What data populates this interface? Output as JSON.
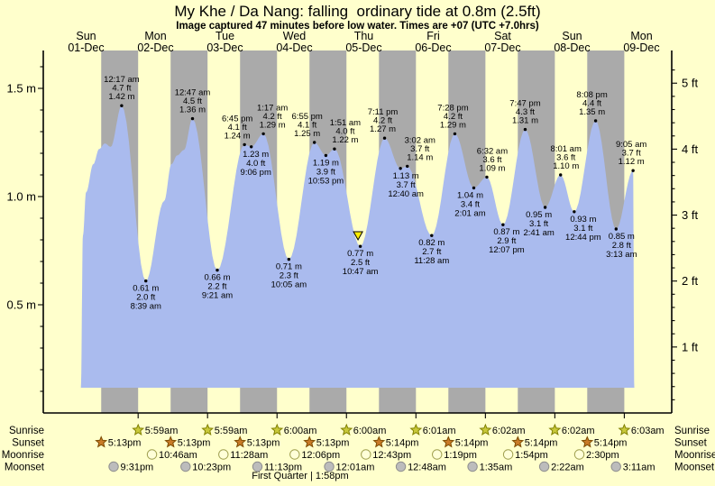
{
  "title": "My Khe / Da Nang: falling  ordinary tide at 0.8m (2.5ft)",
  "subtitle": "Image captured 47 minutes before low water. Times are +07 (UTC +7.0hrs)",
  "colors": {
    "background": "#FFFFCC",
    "night_band": "#AAAAAA",
    "tide_fill": "#AABBEE",
    "day_label_red": "#EE2222",
    "marker_yellow": "#FFEE00",
    "sunrise_star_fill": "#C9C93A",
    "sunrise_star_stroke": "#808000",
    "sunset_star_fill": "#C97B28",
    "sunset_star_stroke": "#7C4A00",
    "moonrise_circle_fill": "#FFFFD8",
    "moonrise_circle_stroke": "#A0A050",
    "moonset_circle_fill": "#BCBCBC",
    "moonset_circle_stroke": "#8F8F8F"
  },
  "chart_data": {
    "type": "area",
    "title": "My Khe / Da Nang: falling  ordinary tide at 0.8m (2.5ft)",
    "subtitle": "Image captured 47 minutes before low water. Times are +07 (UTC +7.0hrs)",
    "x_axis": {
      "days": [
        {
          "name": "Sun",
          "date": "01-Dec"
        },
        {
          "name": "Mon",
          "date": "02-Dec"
        },
        {
          "name": "Tue",
          "date": "03-Dec"
        },
        {
          "name": "Wed",
          "date": "04-Dec"
        },
        {
          "name": "Thu",
          "date": "05-Dec"
        },
        {
          "name": "Fri",
          "date": "06-Dec"
        },
        {
          "name": "Sat",
          "date": "07-Dec"
        },
        {
          "name": "Sun",
          "date": "08-Dec"
        },
        {
          "name": "Mon",
          "date": "09-Dec"
        }
      ]
    },
    "y_axis_left": {
      "unit": "m",
      "ticks": [
        0.5,
        1.0,
        1.5
      ],
      "tick_labels": [
        "0.5 m",
        "1.0 m",
        "1.5 m"
      ],
      "minor_step": 0.1,
      "range_m": [
        0,
        1.65
      ]
    },
    "y_axis_right": {
      "unit": "ft",
      "ticks": [
        1,
        2,
        3,
        4,
        5
      ],
      "tick_labels": [
        "1 ft",
        "2 ft",
        "3 ft",
        "4 ft",
        "5 ft"
      ],
      "minor_step": 0.2
    },
    "tide_extremes": [
      {
        "type": "high",
        "time": "12:17 am",
        "t_hours": 24.283,
        "height_m": 1.42,
        "height_ft": "4.7",
        "label_side": "above",
        "label_dx": 0
      },
      {
        "type": "low",
        "time": "8:39 am",
        "t_hours": 32.65,
        "height_m": 0.61,
        "height_ft": "2.0",
        "label_side": "below",
        "label_dx": 0
      },
      {
        "type": "high",
        "time": "12:47 am",
        "t_hours": 48.783,
        "height_m": 1.36,
        "height_ft": "4.5",
        "label_side": "above",
        "label_dx": 0
      },
      {
        "type": "low",
        "time": "9:21 am",
        "t_hours": 57.35,
        "height_m": 0.66,
        "height_ft": "2.2",
        "label_side": "below",
        "label_dx": 0
      },
      {
        "type": "high",
        "time": "6:45 pm",
        "t_hours": 66.75,
        "height_m": 1.24,
        "height_ft": "4.1",
        "label_side": "above",
        "label_dx": -8
      },
      {
        "type": "low",
        "time": "9:06 pm",
        "t_hours": 69.1,
        "height_m": 1.23,
        "height_ft": "4.0",
        "label_side": "below",
        "label_dx": 5
      },
      {
        "type": "high",
        "time": "1:17 am",
        "t_hours": 73.283,
        "height_m": 1.29,
        "height_ft": "4.2",
        "label_side": "above",
        "label_dx": 10
      },
      {
        "type": "low",
        "time": "10:05 am",
        "t_hours": 82.083,
        "height_m": 0.71,
        "height_ft": "2.3",
        "label_side": "below",
        "label_dx": 0
      },
      {
        "type": "high",
        "time": "6:55 pm",
        "t_hours": 90.917,
        "height_m": 1.25,
        "height_ft": "4.1",
        "label_side": "above",
        "label_dx": -8
      },
      {
        "type": "low",
        "time": "10:53 pm",
        "t_hours": 94.883,
        "height_m": 1.19,
        "height_ft": "3.9",
        "label_side": "below",
        "label_dx": 0
      },
      {
        "type": "high",
        "time": "1:51 am",
        "t_hours": 97.85,
        "height_m": 1.22,
        "height_ft": "4.0",
        "label_side": "above",
        "label_dx": 12
      },
      {
        "type": "low",
        "time": "10:47 am",
        "t_hours": 106.783,
        "height_m": 0.77,
        "height_ft": "2.5",
        "label_side": "below",
        "label_dx": 0
      },
      {
        "type": "high",
        "time": "7:11 pm",
        "t_hours": 115.183,
        "height_m": 1.27,
        "height_ft": "4.2",
        "label_side": "above",
        "label_dx": -2
      },
      {
        "type": "low",
        "time": "12:40 am",
        "t_hours": 120.667,
        "height_m": 1.13,
        "height_ft": "3.7",
        "label_side": "below",
        "label_dx": 6
      },
      {
        "type": "high",
        "time": "3:02 am",
        "t_hours": 123.033,
        "height_m": 1.14,
        "height_ft": "3.7",
        "label_side": "above",
        "label_dx": 14
      },
      {
        "type": "low",
        "time": "11:28 am",
        "t_hours": 131.467,
        "height_m": 0.82,
        "height_ft": "2.7",
        "label_side": "below",
        "label_dx": 0
      },
      {
        "type": "high",
        "time": "7:28 pm",
        "t_hours": 139.467,
        "height_m": 1.29,
        "height_ft": "4.2",
        "label_side": "above",
        "label_dx": -2
      },
      {
        "type": "low",
        "time": "2:01 am",
        "t_hours": 146.017,
        "height_m": 1.04,
        "height_ft": "3.4",
        "label_side": "below",
        "label_dx": -4
      },
      {
        "type": "high",
        "time": "6:32 am",
        "t_hours": 150.533,
        "height_m": 1.09,
        "height_ft": "3.6",
        "label_side": "above",
        "label_dx": 6
      },
      {
        "type": "low",
        "time": "12:07 pm",
        "t_hours": 156.117,
        "height_m": 0.87,
        "height_ft": "2.9",
        "label_side": "below",
        "label_dx": 4
      },
      {
        "type": "high",
        "time": "7:47 pm",
        "t_hours": 163.783,
        "height_m": 1.31,
        "height_ft": "4.3",
        "label_side": "above",
        "label_dx": 0
      },
      {
        "type": "low",
        "time": "2:41 am",
        "t_hours": 170.683,
        "height_m": 0.95,
        "height_ft": "3.1",
        "label_side": "below",
        "label_dx": -7
      },
      {
        "type": "high",
        "time": "8:01 am",
        "t_hours": 176.017,
        "height_m": 1.1,
        "height_ft": "3.6",
        "label_side": "above",
        "label_dx": 6
      },
      {
        "type": "low",
        "time": "12:44 pm",
        "t_hours": 180.733,
        "height_m": 0.93,
        "height_ft": "3.1",
        "label_side": "below",
        "label_dx": 10
      },
      {
        "type": "high",
        "time": "8:08 pm",
        "t_hours": 188.133,
        "height_m": 1.35,
        "height_ft": "4.4",
        "label_side": "above",
        "label_dx": -4
      },
      {
        "type": "low",
        "time": "3:13 am",
        "t_hours": 195.217,
        "height_m": 0.85,
        "height_ft": "2.8",
        "label_side": "below",
        "label_dx": 6
      },
      {
        "type": "high",
        "time": "9:05 am",
        "t_hours": 201.083,
        "height_m": 1.12,
        "height_ft": "3.7",
        "label_side": "above",
        "label_dx": -2
      }
    ],
    "curve_shape_points": [
      {
        "t_hours": 10.2,
        "height_m": 0.12
      },
      {
        "t_hours": 10.9,
        "height_m": 0.82
      },
      {
        "t_hours": 12.0,
        "height_m": 1.02
      },
      {
        "t_hours": 14.5,
        "height_m": 1.15
      },
      {
        "t_hours": 16.5,
        "height_m": 1.22
      },
      {
        "t_hours": 18.5,
        "height_m": 1.245
      },
      {
        "t_hours": 20.5,
        "height_m": 1.23
      },
      {
        "t_hours": 39.0,
        "height_m": 0.98
      },
      {
        "t_hours": 41.5,
        "height_m": 1.15
      },
      {
        "t_hours": 43.5,
        "height_m": 1.19
      },
      {
        "t_hours": 45.8,
        "height_m": 1.215
      },
      {
        "t_hours": 201.5,
        "height_m": 0.12
      }
    ],
    "current_marker": {
      "t_hours": 106.0,
      "height_m": 0.8
    }
  },
  "sun_moon": {
    "row_labels": [
      "Sunrise",
      "Sunset",
      "Moonrise",
      "Moonset"
    ],
    "sunrise": [
      {
        "time": "5:59am",
        "t_hours": 29.983
      },
      {
        "time": "5:59am",
        "t_hours": 53.983
      },
      {
        "time": "6:00am",
        "t_hours": 78.0
      },
      {
        "time": "6:00am",
        "t_hours": 102.0
      },
      {
        "time": "6:01am",
        "t_hours": 126.017
      },
      {
        "time": "6:02am",
        "t_hours": 150.033
      },
      {
        "time": "6:02am",
        "t_hours": 174.033
      },
      {
        "time": "6:03am",
        "t_hours": 198.05
      }
    ],
    "sunset": [
      {
        "time": "5:13pm",
        "t_hours": 17.217
      },
      {
        "time": "5:13pm",
        "t_hours": 41.217
      },
      {
        "time": "5:13pm",
        "t_hours": 65.217
      },
      {
        "time": "5:13pm",
        "t_hours": 89.217
      },
      {
        "time": "5:14pm",
        "t_hours": 113.233
      },
      {
        "time": "5:14pm",
        "t_hours": 137.233
      },
      {
        "time": "5:14pm",
        "t_hours": 161.233
      },
      {
        "time": "5:14pm",
        "t_hours": 185.233
      }
    ],
    "moonrise": [
      {
        "time": "10:46am",
        "t_hours": 34.767
      },
      {
        "time": "11:28am",
        "t_hours": 59.467
      },
      {
        "time": "12:06pm",
        "t_hours": 84.1
      },
      {
        "time": "12:43pm",
        "t_hours": 108.717
      },
      {
        "time": "1:19pm",
        "t_hours": 133.317
      },
      {
        "time": "1:54pm",
        "t_hours": 157.9
      },
      {
        "time": "2:30pm",
        "t_hours": 182.5
      }
    ],
    "moonset": [
      {
        "time": "9:31pm",
        "t_hours": 21.517
      },
      {
        "time": "10:23pm",
        "t_hours": 46.383
      },
      {
        "time": "11:13pm",
        "t_hours": 71.217
      },
      {
        "time": "12:01am",
        "t_hours": 96.017
      },
      {
        "time": "12:48am",
        "t_hours": 120.8
      },
      {
        "time": "1:35am",
        "t_hours": 145.583
      },
      {
        "time": "2:22am",
        "t_hours": 170.367
      },
      {
        "time": "3:11am",
        "t_hours": 195.183
      }
    ],
    "moon_phase": {
      "label": "First Quarter | 1:58pm",
      "t_hours": 86.0
    }
  }
}
